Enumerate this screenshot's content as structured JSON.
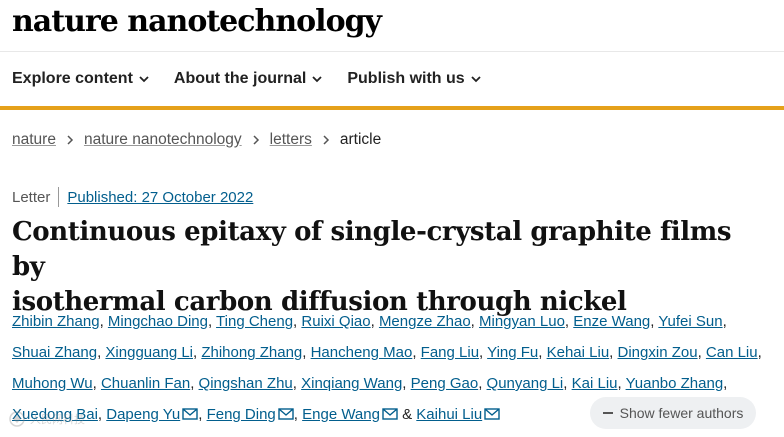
{
  "header": {
    "logo": "nature nanotechnology"
  },
  "nav": [
    {
      "label": "Explore content"
    },
    {
      "label": "About the journal"
    },
    {
      "label": "Publish with us"
    }
  ],
  "breadcrumb": {
    "items": [
      "nature",
      "nature nanotechnology",
      "letters"
    ],
    "current": "article"
  },
  "article": {
    "type": "Letter",
    "published": "Published: 27 October 2022",
    "title_line1": "Continuous epitaxy of single-crystal graphite films by",
    "title_line2": "isothermal carbon diffusion through nickel"
  },
  "authors": [
    "Zhibin Zhang",
    "Mingchao Ding",
    "Ting Cheng",
    "Ruixi Qiao",
    "Mengze Zhao",
    "Mingyan Luo",
    "Enze Wang",
    "Yufei Sun",
    "Shuai Zhang",
    "Xingguang Li",
    "Zhihong Zhang",
    "Hancheng Mao",
    "Fang Liu",
    "Ying Fu",
    "Kehai Liu",
    "Dingxin Zou",
    "Can Liu",
    "Muhong Wu",
    "Chuanlin Fan",
    "Qingshan Zhu",
    "Xinqiang Wang",
    "Peng Gao",
    "Qunyang Li",
    "Kai Liu",
    "Yuanbo Zhang",
    "Xuedong Bai",
    "Dapeng Yu",
    "Feng Ding",
    "Enge Wang",
    "Kaihui Liu"
  ],
  "author_separator": ", ",
  "author_final_join": " & ",
  "corresponding_authors": [
    26,
    27,
    28,
    29
  ],
  "toggle": {
    "label": "Show fewer authors"
  },
  "watermark": {
    "text": "人民网科技"
  },
  "icons": {
    "chevron": "chevron-down-icon",
    "mail": "mail-icon"
  },
  "colors": {
    "link": "#025e8d",
    "accent_bar": "#e5a11a"
  }
}
